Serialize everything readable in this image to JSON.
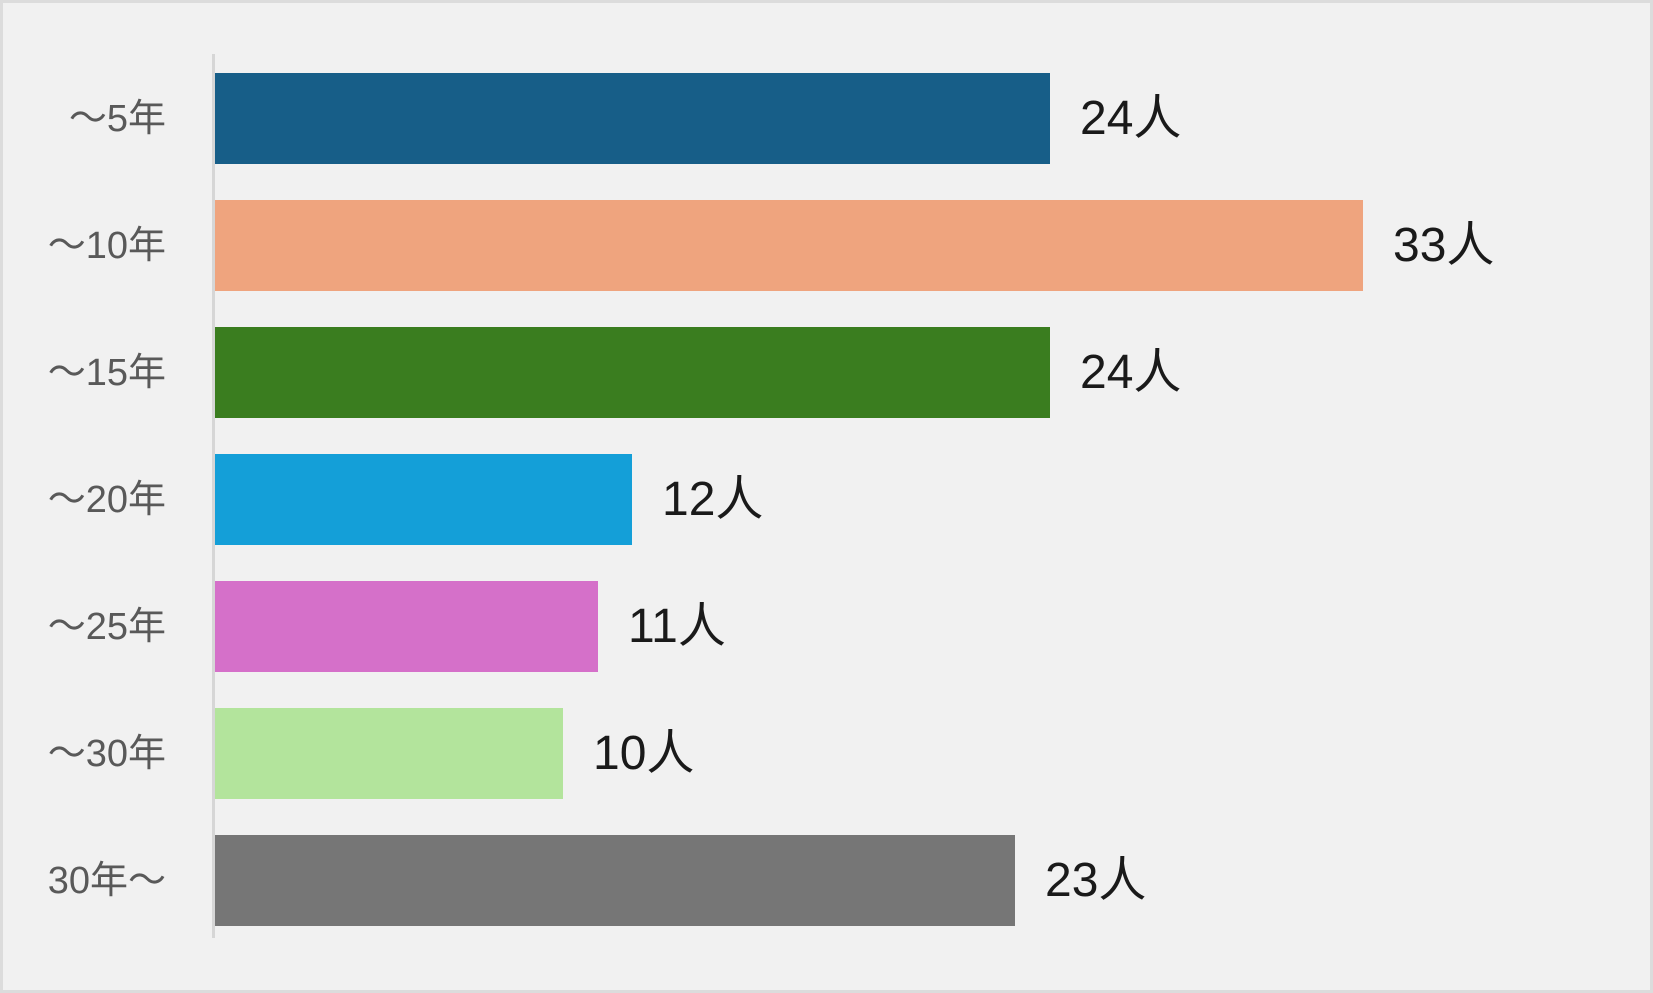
{
  "chart_data": {
    "type": "bar",
    "orientation": "horizontal",
    "title": "",
    "xlabel": "",
    "ylabel": "",
    "categories": [
      "～5年",
      "～10年",
      "～15年",
      "～20年",
      "～25年",
      "～30年",
      "30年～"
    ],
    "values": [
      24,
      33,
      24,
      12,
      11,
      10,
      23
    ],
    "unit": "人",
    "data_labels": [
      "24人",
      "33人",
      "24人",
      "12人",
      "11人",
      "10人",
      "23人"
    ],
    "bar_colors": [
      "#175E88",
      "#EFA47E",
      "#3A7D1F",
      "#149FD8",
      "#D570C9",
      "#B3E49C",
      "#767676"
    ],
    "xlim": [
      0,
      40.5
    ],
    "grid": false,
    "legend": false
  },
  "colors": {
    "background": "#F1F1F1",
    "border": "#DCDCDC",
    "axis_line": "#D6D6D6",
    "category_label": "#595959",
    "value_label": "#1A1A1A"
  }
}
